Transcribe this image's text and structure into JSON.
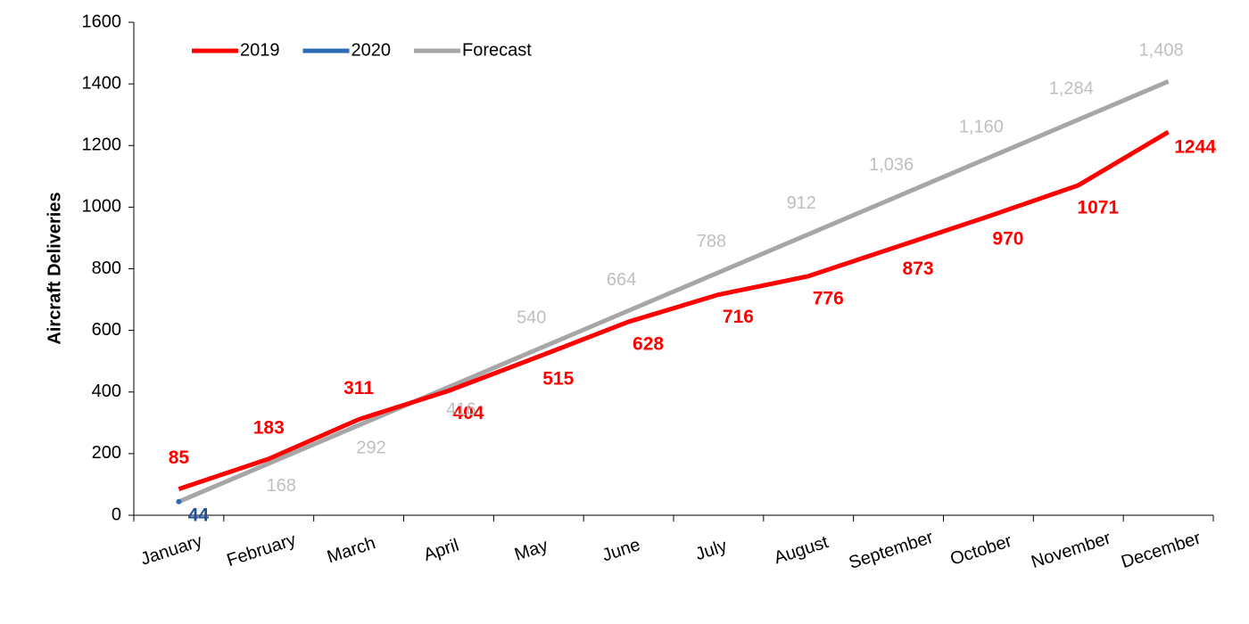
{
  "chart_data": {
    "type": "line",
    "y_label": "Aircraft Deliveries",
    "categories": [
      "January",
      "February",
      "March",
      "April",
      "May",
      "June",
      "July",
      "August",
      "September",
      "October",
      "November",
      "December"
    ],
    "series": [
      {
        "name": "2019",
        "color": "#ff0000",
        "values": [
          85,
          183,
          311,
          404,
          515,
          628,
          716,
          776,
          873,
          970,
          1071,
          1244
        ]
      },
      {
        "name": "2020",
        "color": "#2e6bb5",
        "values": [
          44,
          null,
          null,
          null,
          null,
          null,
          null,
          null,
          null,
          null,
          null,
          null
        ]
      },
      {
        "name": "Forecast",
        "color": "#a6a6a6",
        "values": [
          44,
          168,
          292,
          416,
          540,
          664,
          788,
          912,
          1036,
          1160,
          1284,
          1408
        ],
        "value_labels": [
          null,
          "168",
          "292",
          "416",
          "540",
          "664",
          "788",
          "912",
          "1,036",
          "1,160",
          "1,284",
          "1,408"
        ]
      }
    ],
    "ylim": [
      0,
      1600
    ],
    "yticks": [
      0,
      200,
      400,
      600,
      800,
      1000,
      1200,
      1400,
      1600
    ],
    "grid": false,
    "legend": "top-left"
  }
}
